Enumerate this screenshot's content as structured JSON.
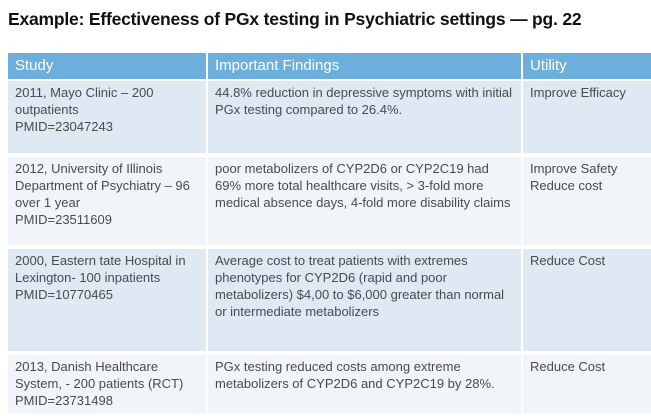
{
  "title": "Example: Effectiveness of PGx testing in Psychiatric settings — pg. 22",
  "table": {
    "columns": [
      {
        "label": "Study"
      },
      {
        "label": "Important Findings"
      },
      {
        "label": "Utility"
      }
    ],
    "rows": [
      {
        "study": "2011, Mayo Clinic – 200 outpatients\nPMID=23047243",
        "findings": "44.8% reduction in depressive symptoms with initial PGx testing compared to 26.4%.",
        "utility": "Improve Efficacy"
      },
      {
        "study": "2012, University of Illinois Department of Psychiatry – 96 over 1 year\nPMID=23511609",
        "findings": "poor metabolizers of CYP2D6 or CYP2C19 had 69% more total healthcare visits, > 3-fold more medical absence days, 4-fold more disability claims",
        "utility": "Improve Safety\nReduce cost"
      },
      {
        "study": "2000, Eastern tate Hospital in Lexington- 100 inpatients\nPMID=10770465",
        "findings": "Average cost to treat patients with extremes phenotypes for CYP2D6 (rapid and poor metabolizers) $4,00 to $6,000 greater than normal or intermediate metabolizers",
        "utility": "Reduce Cost"
      },
      {
        "study": "2013, Danish Healthcare System, - 200 patients (RCT)\nPMID=23731498",
        "findings": "PGx testing reduced costs among extreme metabolizers of CYP2D6 and CYP2C19 by 28%.",
        "utility": "Reduce Cost"
      }
    ]
  },
  "colors": {
    "header_bg": "#6CAEDC",
    "header_text": "#FFFFFF",
    "row_band_a": "#DEE9F4",
    "row_band_b": "#F1F5FA",
    "body_text": "#4A4A4A",
    "title_text": "#111111"
  }
}
